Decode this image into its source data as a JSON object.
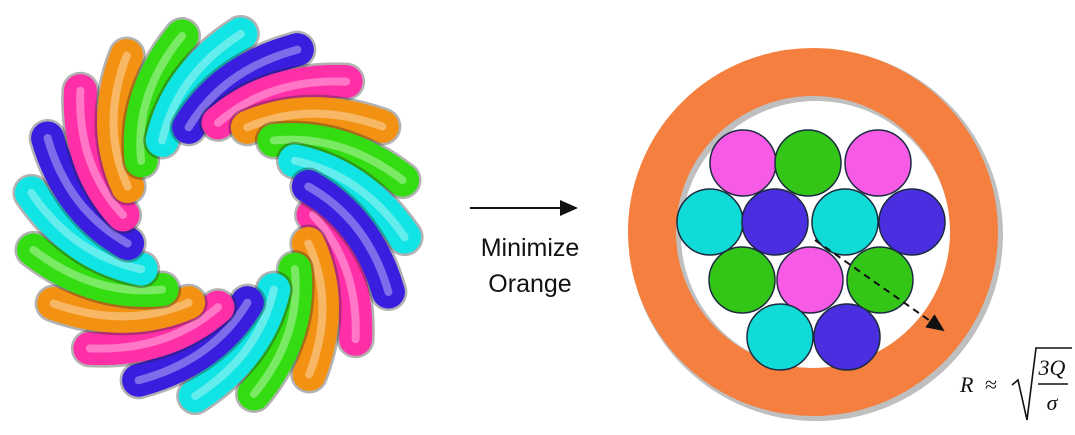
{
  "label": [
    "Minimize",
    "Orange"
  ],
  "formula": {
    "lhs": "R",
    "op": "≈",
    "numerator": "3Q",
    "denominator": "σ"
  }
}
